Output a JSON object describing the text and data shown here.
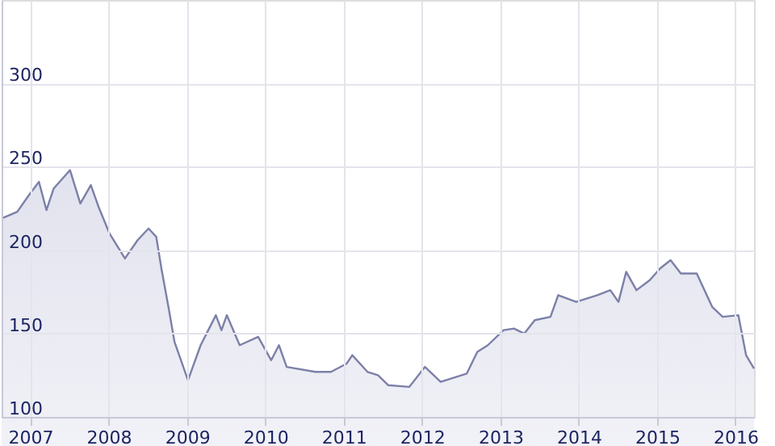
{
  "chart_data": {
    "type": "area",
    "x": [
      "2006-08-20",
      "2006-11-01",
      "2006-12-20",
      "2007-02-10",
      "2007-03-17",
      "2007-04-20",
      "2007-07-05",
      "2007-08-22",
      "2007-10-10",
      "2007-11-15",
      "2008-01-05",
      "2008-03-17",
      "2008-05-15",
      "2008-07-05",
      "2008-08-10",
      "2008-09-03",
      "2008-10-10",
      "2008-11-03",
      "2009-01-05",
      "2009-03-05",
      "2009-05-15",
      "2009-06-10",
      "2009-07-05",
      "2009-09-03",
      "2009-11-28",
      "2010-01-28",
      "2010-03-05",
      "2010-04-10",
      "2010-08-22",
      "2010-11-03",
      "2011-01-15",
      "2011-02-10",
      "2011-04-22",
      "2011-06-10",
      "2011-07-28",
      "2011-11-03",
      "2012-01-15",
      "2012-03-28",
      "2012-07-28",
      "2012-09-15",
      "2012-11-03",
      "2013-01-15",
      "2013-03-05",
      "2013-04-22",
      "2013-06-10",
      "2013-08-22",
      "2013-09-27",
      "2013-12-20",
      "2014-03-28",
      "2014-05-28",
      "2014-07-05",
      "2014-08-10",
      "2014-09-27",
      "2014-11-28",
      "2015-01-15",
      "2015-03-05",
      "2015-04-22",
      "2015-07-05",
      "2015-09-15",
      "2015-11-03",
      "2016-01-15",
      "2016-02-20",
      "2016-03-28"
    ],
    "series": [
      {
        "color": "#7c80a8",
        "values": [
          219,
          223,
          232,
          241,
          224,
          237,
          248,
          228,
          239,
          226,
          210,
          195,
          206,
          213,
          208,
          189,
          163,
          145,
          122,
          143,
          161,
          152,
          161,
          143,
          148,
          134,
          143,
          130,
          127,
          127,
          132,
          137,
          127,
          125,
          119,
          118,
          130,
          121,
          126,
          139,
          143,
          152,
          153,
          150,
          158,
          160,
          173,
          169,
          173,
          176,
          169,
          187,
          176,
          182,
          189,
          194,
          186,
          186,
          166,
          160,
          161,
          137,
          129
        ]
      }
    ],
    "xlim": [
      "2006-08-20",
      "2016-03-28"
    ],
    "xticks": [
      "2007",
      "2008",
      "2009",
      "2010",
      "2011",
      "2012",
      "2013",
      "2014",
      "2015",
      "2016"
    ],
    "ylim": [
      100,
      350
    ],
    "yticks": [
      100,
      150,
      200,
      250,
      300
    ],
    "grid": true
  }
}
